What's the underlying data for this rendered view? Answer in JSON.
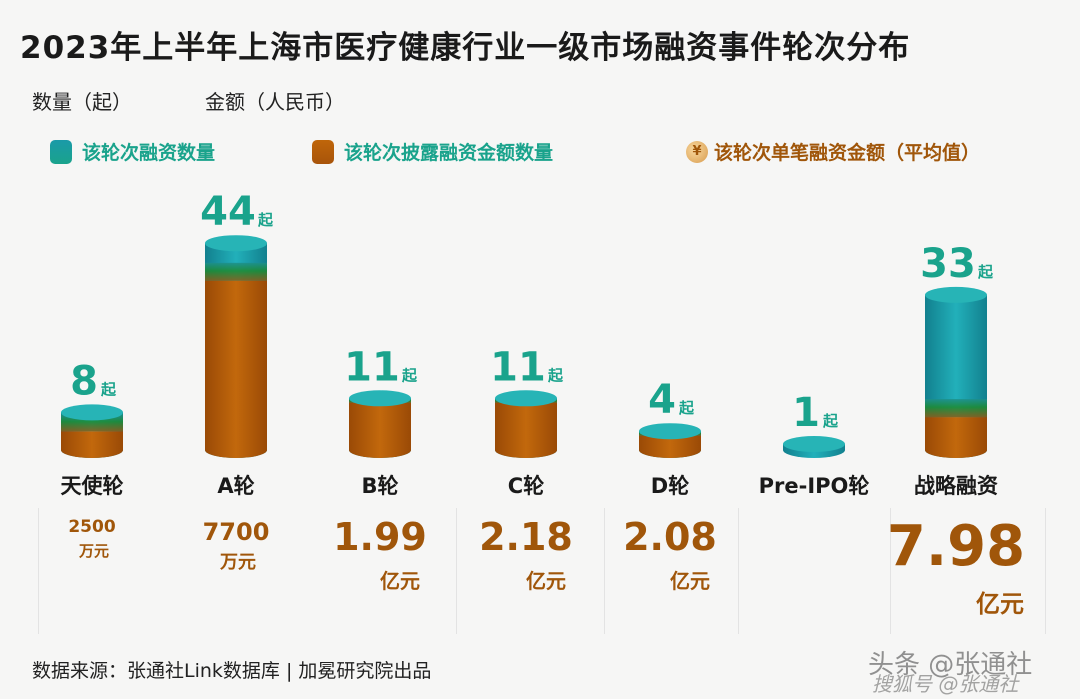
{
  "title": "2023年上半年上海市医疗健康行业一级市场融资事件轮次分布",
  "units": {
    "count": "数量（起）",
    "amount": "金额（人民币）"
  },
  "legend": [
    {
      "label": "该轮次融资数量",
      "icon": "teal-cylinder-icon",
      "color": "#1aa38c"
    },
    {
      "label": "该轮次披露融资金额数量",
      "icon": "brown-cylinder-icon",
      "color": "#a0560a"
    },
    {
      "label": "该轮次单笔融资金额（平均值）",
      "icon": "yen-coin-icon",
      "color": "#a0560a"
    }
  ],
  "chart_data": {
    "type": "bar",
    "title": "2023年上半年上海市医疗健康行业一级市场融资事件轮次分布",
    "categories": [
      "天使轮",
      "A轮",
      "B轮",
      "C轮",
      "D轮",
      "Pre-IPO轮",
      "战略融资"
    ],
    "series": [
      {
        "name": "该轮次融资数量",
        "values": [
          8,
          44,
          11,
          11,
          4,
          1,
          33
        ]
      },
      {
        "name": "该轮次披露融资金额数量",
        "values": [
          4,
          36,
          10,
          10,
          3,
          0,
          7
        ]
      }
    ],
    "count_labels": [
      "8",
      "44",
      "11",
      "11",
      "4",
      "1",
      "33"
    ],
    "count_unit": "起",
    "average_amount": [
      {
        "value": "2500",
        "unit": "万元"
      },
      {
        "value": "7700",
        "unit": "万元"
      },
      {
        "value": "1.99",
        "unit": "亿元"
      },
      {
        "value": "2.18",
        "unit": "亿元"
      },
      {
        "value": "2.08",
        "unit": "亿元"
      },
      {
        "value": "",
        "unit": ""
      },
      {
        "value": "7.98",
        "unit": "亿元"
      }
    ],
    "colors": {
      "teal": "#1aa38c",
      "teal_top": "#1aa0a6",
      "brown": "#b0570a",
      "brown_label": "#a0560a"
    }
  },
  "footer": "数据来源：张通社Link数据库 | 加冕研究院出品",
  "watermark": "头条 @张通社",
  "watermark2": "搜狐号 @张通社"
}
